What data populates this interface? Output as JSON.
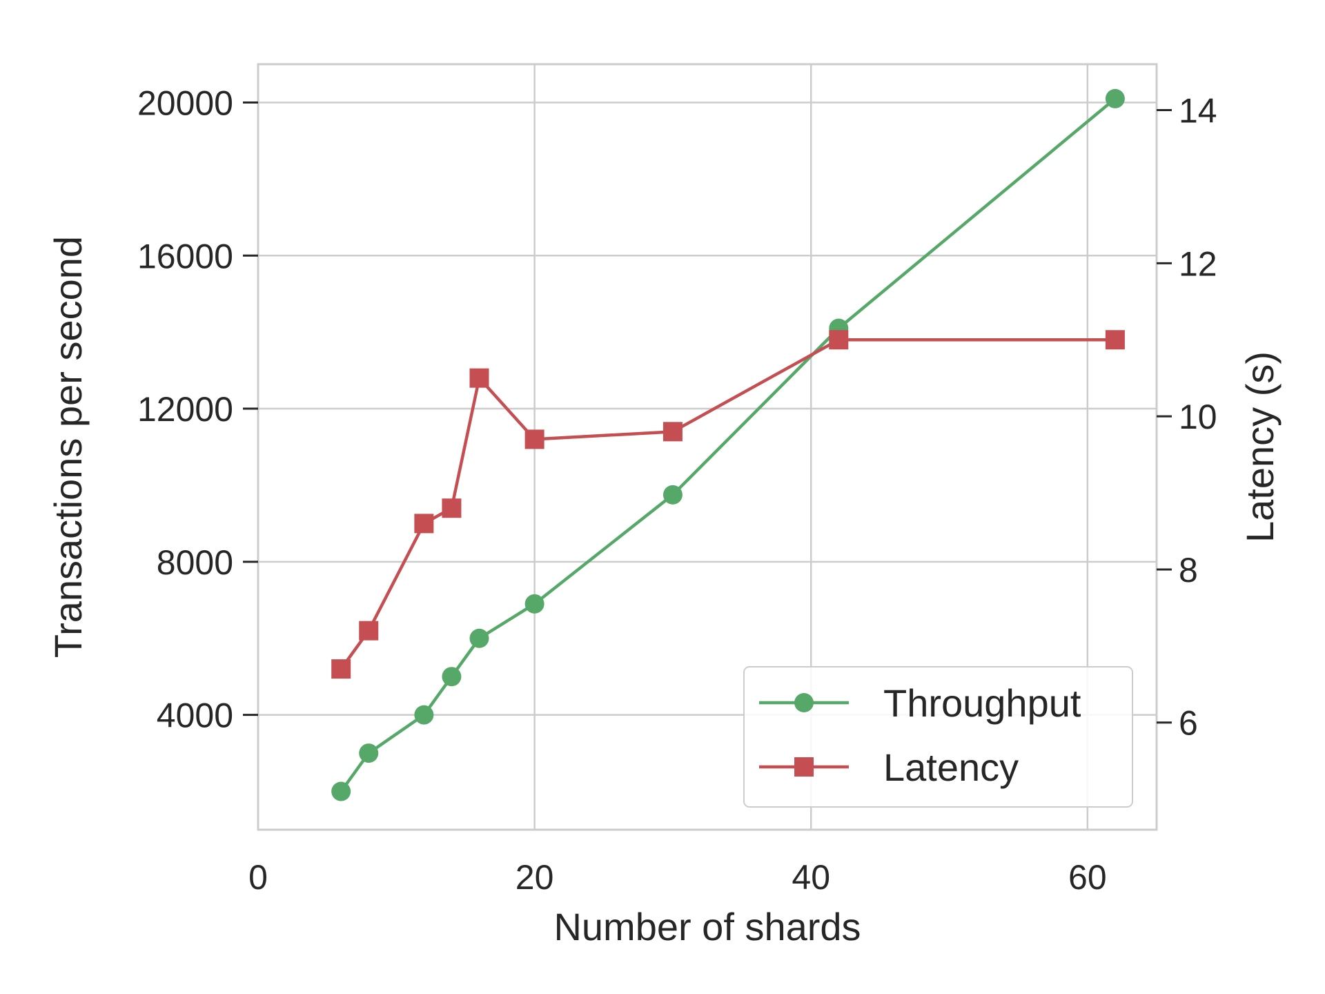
{
  "chart_data": {
    "type": "line",
    "xlabel": "Number of shards",
    "ylabel_left": "Transactions per second",
    "ylabel_right": "Latency (s)",
    "xlim": [
      0,
      65
    ],
    "ylim_left": [
      1000,
      21000
    ],
    "ylim_right": [
      4.6,
      14.6
    ],
    "x_ticks": [
      0,
      20,
      40,
      60
    ],
    "y_ticks_left": [
      4000,
      8000,
      12000,
      16000,
      20000
    ],
    "y_ticks_right": [
      6,
      8,
      10,
      12,
      14
    ],
    "grid": true,
    "legend_position": "lower-right",
    "series": [
      {
        "name": "Throughput",
        "axis": "left",
        "color": "#55a868",
        "marker": "circle",
        "x": [
          6,
          8,
          12,
          14,
          16,
          20,
          30,
          42,
          62
        ],
        "y": [
          2000,
          3000,
          4000,
          5000,
          6000,
          6900,
          9750,
          14100,
          20100
        ]
      },
      {
        "name": "Latency",
        "axis": "right",
        "color": "#c44e52",
        "marker": "square",
        "x": [
          6,
          8,
          12,
          14,
          16,
          20,
          30,
          42,
          62
        ],
        "y": [
          6.7,
          7.2,
          8.6,
          8.8,
          10.5,
          9.7,
          9.8,
          11.0,
          11.0
        ]
      }
    ]
  }
}
